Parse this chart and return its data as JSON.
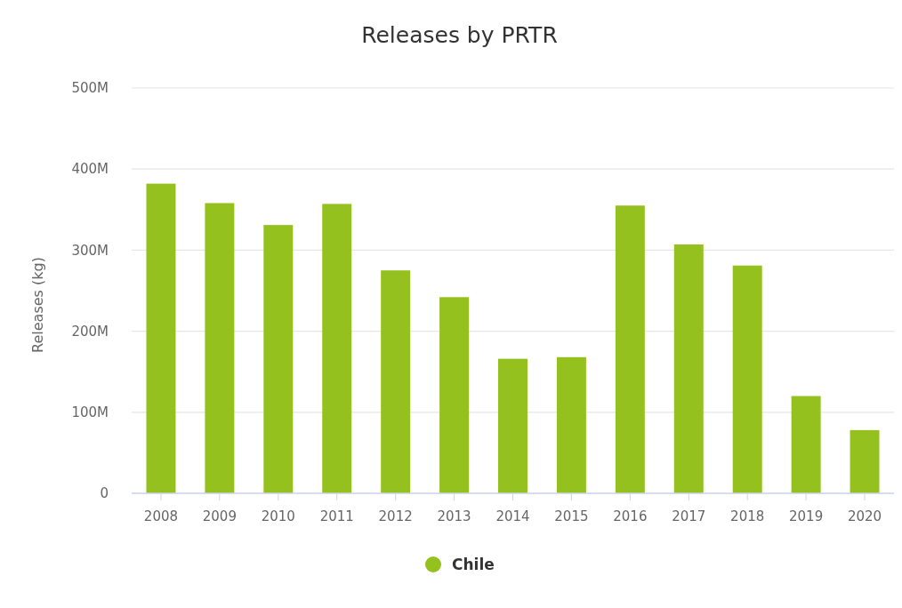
{
  "chart_data": {
    "type": "bar",
    "title": "Releases by PRTR",
    "ylabel": "Releases (kg)",
    "categories": [
      "2008",
      "2009",
      "2010",
      "2011",
      "2012",
      "2013",
      "2014",
      "2015",
      "2016",
      "2017",
      "2018",
      "2019",
      "2020"
    ],
    "series": [
      {
        "name": "Chile",
        "color": "#95c11f",
        "values": [
          382000000,
          358000000,
          331000000,
          357000000,
          275000000,
          242000000,
          166000000,
          168000000,
          355000000,
          307000000,
          281000000,
          120000000,
          78000000
        ]
      }
    ],
    "ylim": [
      0,
      500000000
    ],
    "yticks": [
      {
        "value": 0,
        "label": "0"
      },
      {
        "value": 100000000,
        "label": "100M"
      },
      {
        "value": 200000000,
        "label": "200M"
      },
      {
        "value": 300000000,
        "label": "300M"
      },
      {
        "value": 400000000,
        "label": "400M"
      },
      {
        "value": 500000000,
        "label": "500M"
      }
    ],
    "grid": "y",
    "legend": "bottom",
    "marker": "circle"
  }
}
